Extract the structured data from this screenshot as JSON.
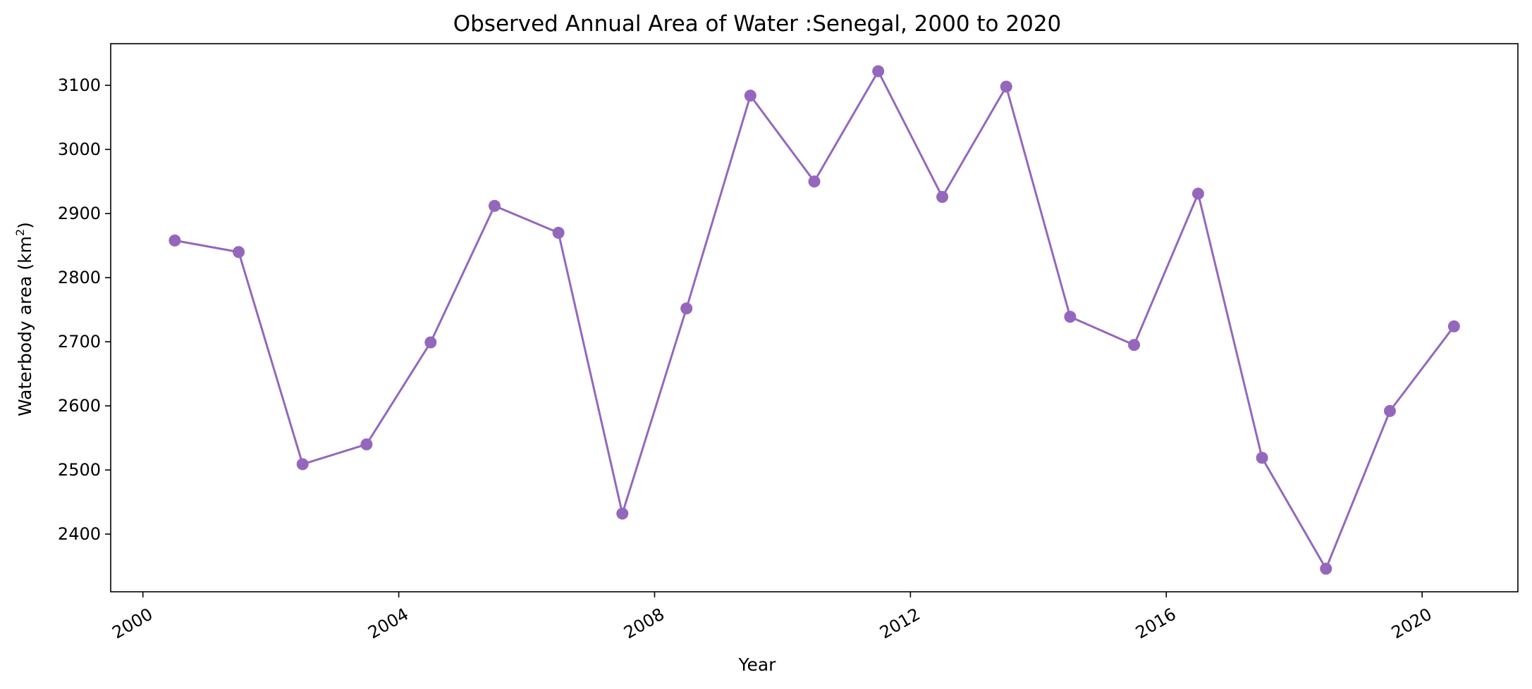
{
  "chart_data": {
    "type": "line",
    "title": "Observed Annual Area of Water :Senegal, 2000 to 2020",
    "xlabel": "Year",
    "ylabel": "Waterbody area (km²)",
    "ylabel_main": "Waterbody area (km",
    "ylabel_sup": "2",
    "ylabel_end": ")",
    "x_ticks": [
      "2000",
      "2004",
      "2008",
      "2012",
      "2016",
      "2020"
    ],
    "y_ticks": [
      "2400",
      "2500",
      "2600",
      "2700",
      "2800",
      "2900",
      "3000",
      "3100"
    ],
    "xlim": [
      "1999-07-01",
      "2021-07-01"
    ],
    "ylim": [
      2310,
      3165
    ],
    "grid": false,
    "series": [
      {
        "color": "#9467bd",
        "marker": "circle",
        "x": [
          "2000-07-01",
          "2001-07-01",
          "2002-07-01",
          "2003-07-01",
          "2004-07-01",
          "2005-07-01",
          "2006-07-01",
          "2007-07-01",
          "2008-07-01",
          "2009-07-01",
          "2010-07-01",
          "2011-07-01",
          "2012-07-01",
          "2013-07-01",
          "2014-07-01",
          "2015-07-01",
          "2016-07-01",
          "2017-07-01",
          "2018-07-01",
          "2019-07-01",
          "2020-07-01"
        ],
        "values": [
          2858,
          2840,
          2509,
          2540,
          2699,
          2912,
          2870,
          2432,
          2752,
          3084,
          2950,
          3122,
          2926,
          3098,
          2739,
          2695,
          2931,
          2519,
          2346,
          2592,
          2724
        ]
      }
    ]
  }
}
